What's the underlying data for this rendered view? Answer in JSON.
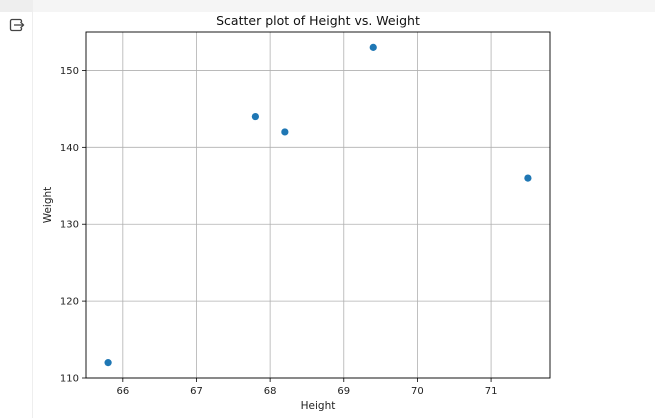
{
  "chart_data": {
    "type": "scatter",
    "title": "Scatter plot of Height vs. Weight",
    "xlabel": "Height",
    "ylabel": "Weight",
    "xlim": [
      65.5,
      71.8
    ],
    "ylim": [
      110,
      155
    ],
    "xticks": [
      66,
      67,
      68,
      69,
      70,
      71
    ],
    "yticks": [
      110,
      120,
      130,
      140,
      150
    ],
    "grid": true,
    "point_color": "#1f77b4",
    "points": [
      {
        "x": 65.8,
        "y": 112
      },
      {
        "x": 67.8,
        "y": 144
      },
      {
        "x": 68.2,
        "y": 142
      },
      {
        "x": 69.4,
        "y": 153
      },
      {
        "x": 71.5,
        "y": 136
      }
    ]
  },
  "ui": {
    "output_icon": "output-expand-icon"
  }
}
